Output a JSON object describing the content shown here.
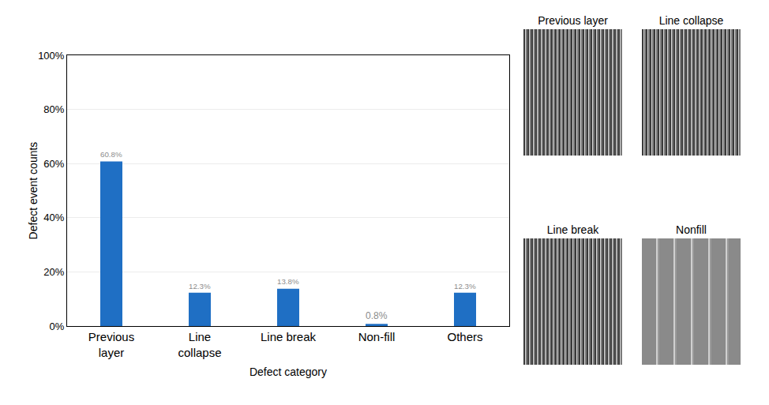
{
  "chart_data": {
    "type": "bar",
    "x_label": "Defect category",
    "y_label": "Defect event counts",
    "categories": [
      "Previous layer",
      "Line collapse",
      "Line break",
      "Non-fill",
      "Others"
    ],
    "values": [
      60.8,
      12.3,
      13.8,
      0.8,
      12.3
    ],
    "value_labels": [
      "60.8%",
      "12.3%",
      "13.8%",
      "0.8%",
      "12.3%"
    ],
    "data_labels": true,
    "color": "#1f6fc4",
    "ylim": [
      0,
      100
    ],
    "yticks": [
      {
        "value": 0,
        "label": "0%"
      },
      {
        "value": 20,
        "label": "20%"
      },
      {
        "value": 40,
        "label": "40%"
      },
      {
        "value": 60,
        "label": "60%"
      },
      {
        "value": 80,
        "label": "80%"
      },
      {
        "value": 100,
        "label": "100%"
      }
    ],
    "grid": true
  },
  "sem_images": [
    {
      "title": "Previous layer"
    },
    {
      "title": "Line collapse"
    },
    {
      "title": "Line break"
    },
    {
      "title": "Nonfill"
    }
  ]
}
